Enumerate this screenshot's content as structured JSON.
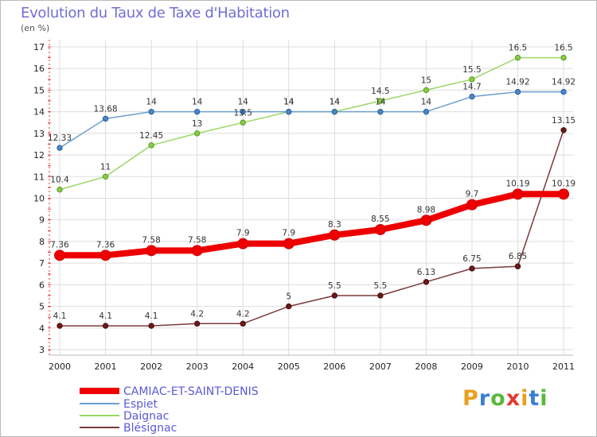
{
  "header": {
    "title": "Evolution du Taux de Taxe d'Habitation",
    "unit": "(en %)"
  },
  "logo": {
    "text": "Proxiti",
    "letter_colors": [
      "#e8a020",
      "#3a7fd4",
      "#5bb83a",
      "#e23b2e",
      "#e8a020",
      "#3a7fd4",
      "#5bb83a"
    ]
  },
  "chart_data": {
    "type": "line",
    "title": "Evolution du Taux de Taxe d'Habitation",
    "ylabel": "(en %)",
    "xlabel": "",
    "x": [
      "2000",
      "2001",
      "2002",
      "2003",
      "2004",
      "2005",
      "2006",
      "2007",
      "2008",
      "2009",
      "2010",
      "2011"
    ],
    "ylim": [
      3,
      17
    ],
    "yticks": [
      "3",
      "4",
      "5",
      "6",
      "7",
      "8",
      "9",
      "10",
      "11",
      "12",
      "13",
      "14",
      "15",
      "16",
      "17"
    ],
    "grid": true,
    "legend_position": "bottom-left",
    "series": [
      {
        "name": "CAMIAC-ET-SAINT-DENIS",
        "color": "#ee0000",
        "values": [
          7.36,
          7.36,
          7.58,
          7.58,
          7.9,
          7.9,
          8.3,
          8.55,
          8.98,
          9.7,
          10.19,
          10.19
        ],
        "labels": [
          "7.36",
          "7.36",
          "7.58",
          "7.58",
          "7.9",
          "7.9",
          "8.3",
          "8.55",
          "8.98",
          "9.7",
          "10.19",
          "10.19"
        ]
      },
      {
        "name": "Espiet",
        "color": "#6d9fd0",
        "values": [
          12.33,
          13.68,
          14,
          14,
          14,
          14,
          14,
          14,
          14,
          14.7,
          14.92,
          14.92
        ],
        "labels": [
          "12.33",
          "13.68",
          "14",
          "14",
          "14",
          "14",
          "14",
          "14",
          "14",
          "14.7",
          "14.92",
          "14.92"
        ]
      },
      {
        "name": "Daignac",
        "color": "#99d765",
        "values": [
          10.4,
          11,
          12.45,
          13,
          13.5,
          14,
          14,
          14.5,
          15,
          15.5,
          16.5,
          16.5
        ],
        "labels": [
          "10.4",
          "11",
          "12.45",
          "13",
          "13.5",
          "14",
          "14",
          "14.5",
          "15",
          "15.5",
          "16.5",
          "16.5"
        ]
      },
      {
        "name": "Blésignac",
        "color": "#7a3a3a",
        "values": [
          4.1,
          4.1,
          4.1,
          4.2,
          4.2,
          5,
          5.5,
          5.5,
          6.13,
          6.75,
          6.85,
          13.15
        ],
        "labels": [
          "4.1",
          "4.1",
          "4.1",
          "4.2",
          "4.2",
          "5",
          "5.5",
          "5.5",
          "6.13",
          "6.75",
          "6.85",
          "13.15"
        ]
      }
    ]
  }
}
